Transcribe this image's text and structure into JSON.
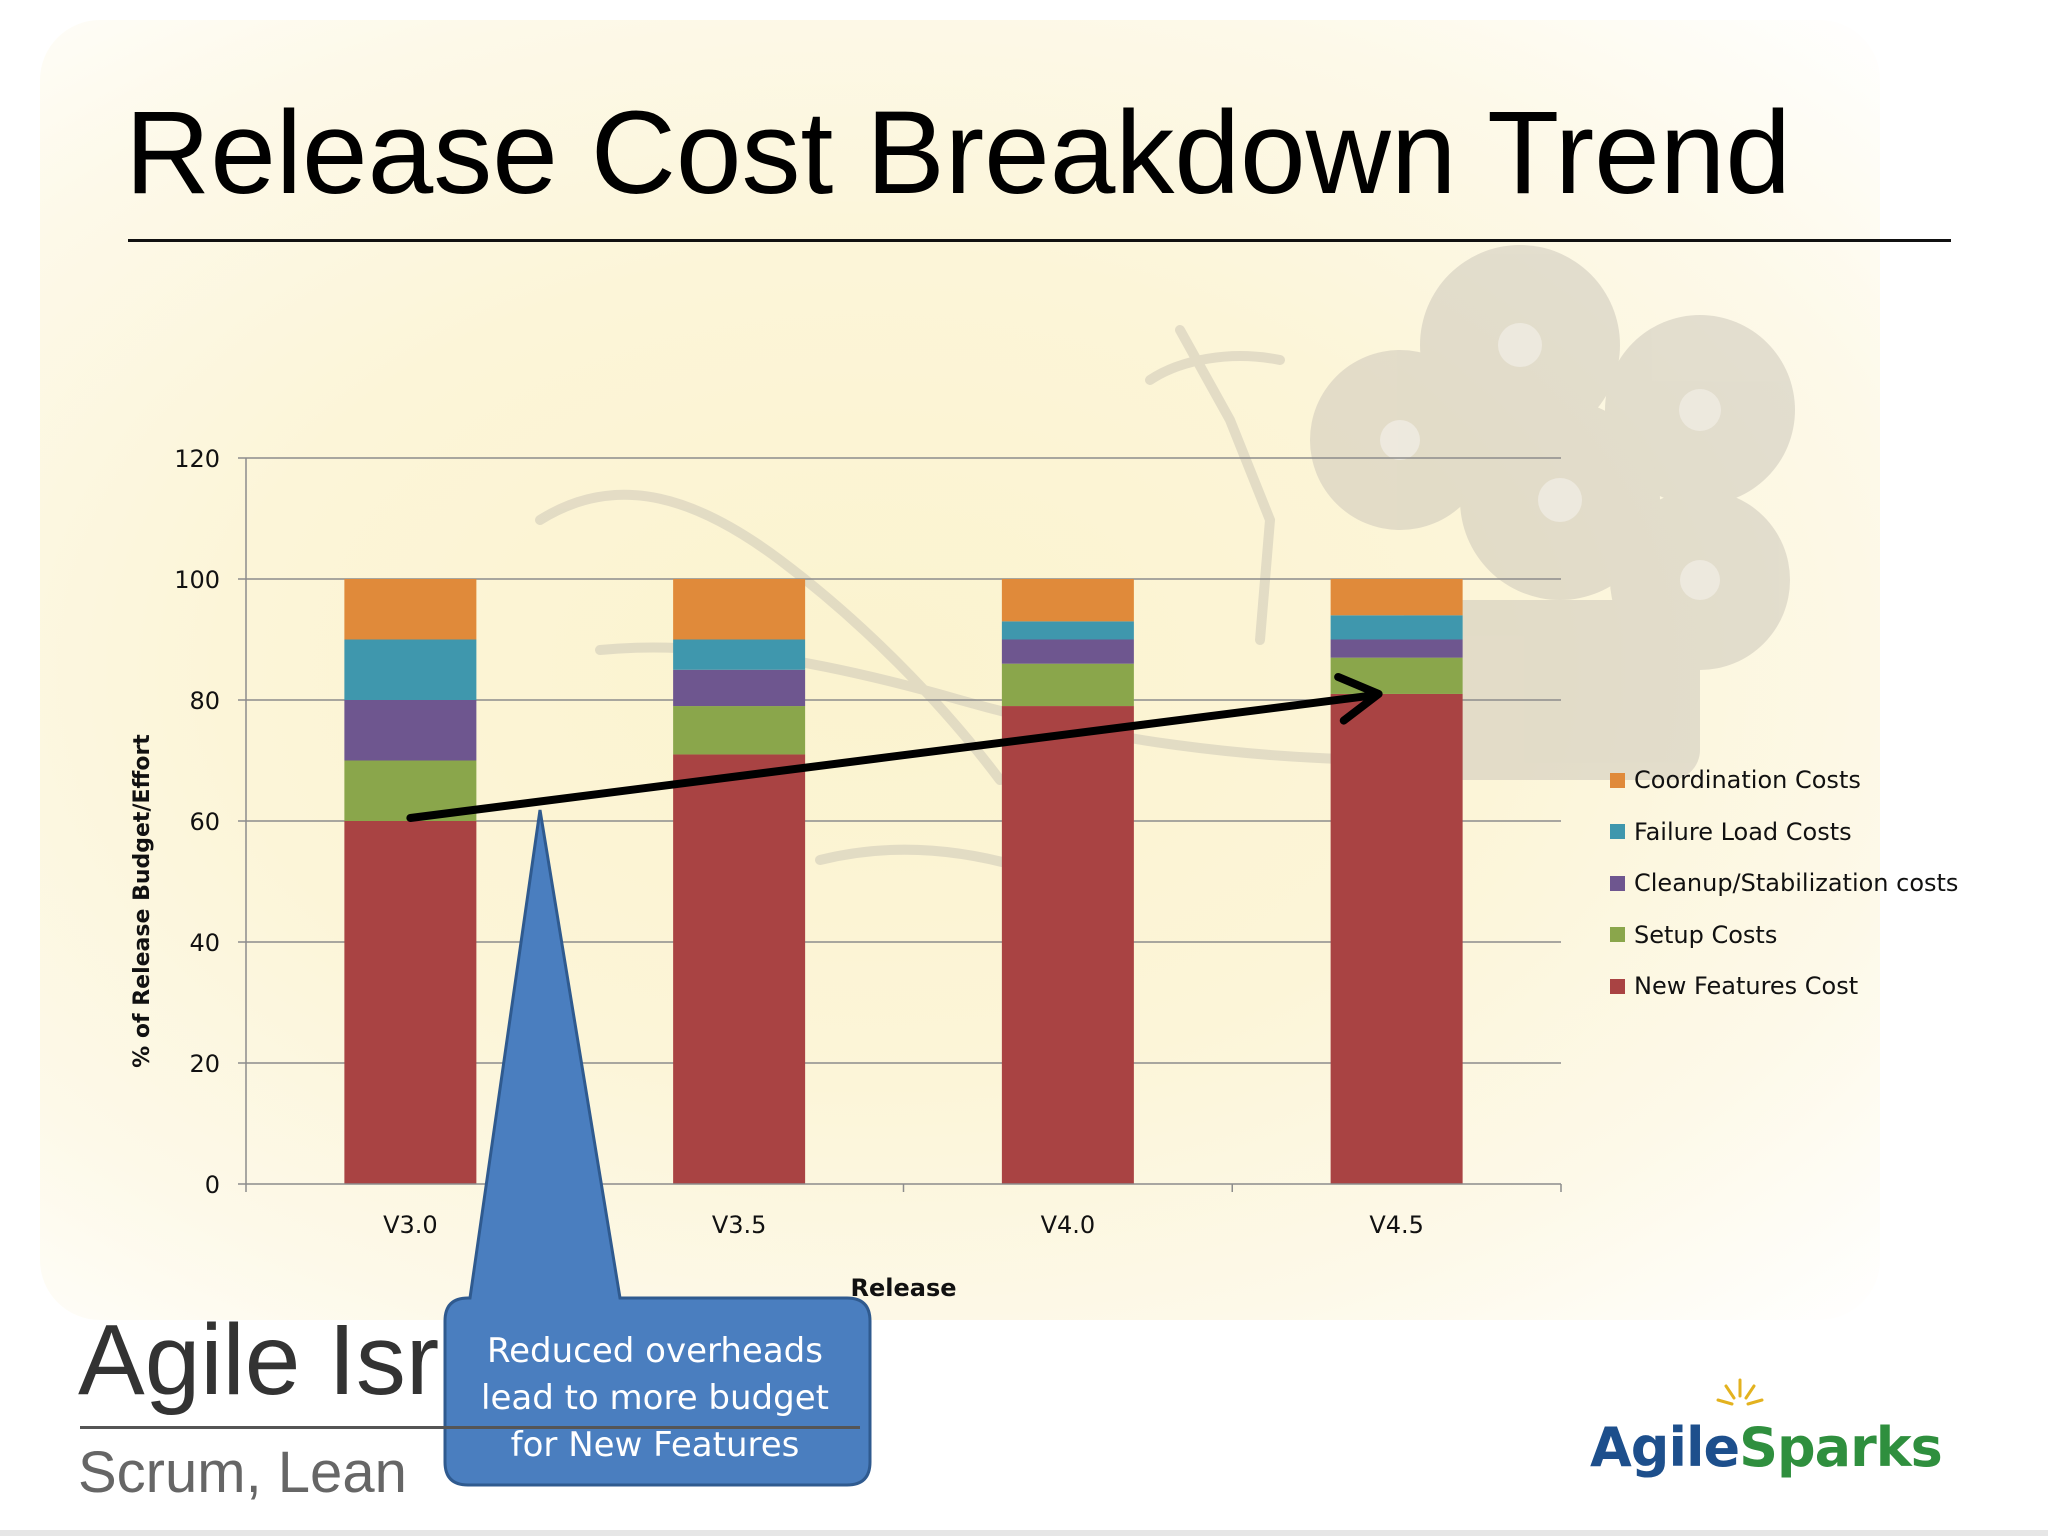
{
  "slide": {
    "title": "Release Cost Breakdown Trend",
    "callout": {
      "lines": [
        "Reduced overheads",
        "lead to more budget",
        "for New Features"
      ],
      "fill": "#4a7ebf",
      "stroke": "#2f5a8f"
    },
    "logo_left": {
      "name": "Agile Isr",
      "tagline": "Scrum, Lean"
    },
    "logo_right": {
      "part1": "Agile",
      "part2": "Sparks"
    }
  },
  "chart_data": {
    "type": "bar",
    "stacked": true,
    "xlabel": "Release",
    "ylabel": "% of Release Budget/Effort",
    "ylim": [
      0,
      120
    ],
    "yticks": [
      0,
      20,
      40,
      60,
      80,
      100,
      120
    ],
    "grid": true,
    "legend_position": "right",
    "categories": [
      "V3.0",
      "V3.5",
      "V4.0",
      "V4.5"
    ],
    "series": [
      {
        "name": "New Features Cost",
        "color": "#a94343",
        "values": [
          60,
          71,
          79,
          81
        ]
      },
      {
        "name": "Setup Costs",
        "color": "#8aa64b",
        "values": [
          10,
          8,
          7,
          6
        ]
      },
      {
        "name": "Cleanup/Stabilization costs",
        "color": "#6e568f",
        "values": [
          10,
          6,
          4,
          3
        ]
      },
      {
        "name": "Failure Load Costs",
        "color": "#3f97ad",
        "values": [
          10,
          5,
          3,
          4
        ]
      },
      {
        "name": "Coordination Costs",
        "color": "#e08a3a",
        "values": [
          10,
          10,
          7,
          6
        ]
      }
    ],
    "legend_order": [
      "Coordination Costs",
      "Failure Load Costs",
      "Cleanup/Stabilization costs",
      "Setup Costs",
      "New Features Cost"
    ],
    "trend_arrow": {
      "from": {
        "category": "V3.0",
        "value": 60.5
      },
      "to": {
        "category": "V4.5",
        "value": 81
      }
    }
  }
}
